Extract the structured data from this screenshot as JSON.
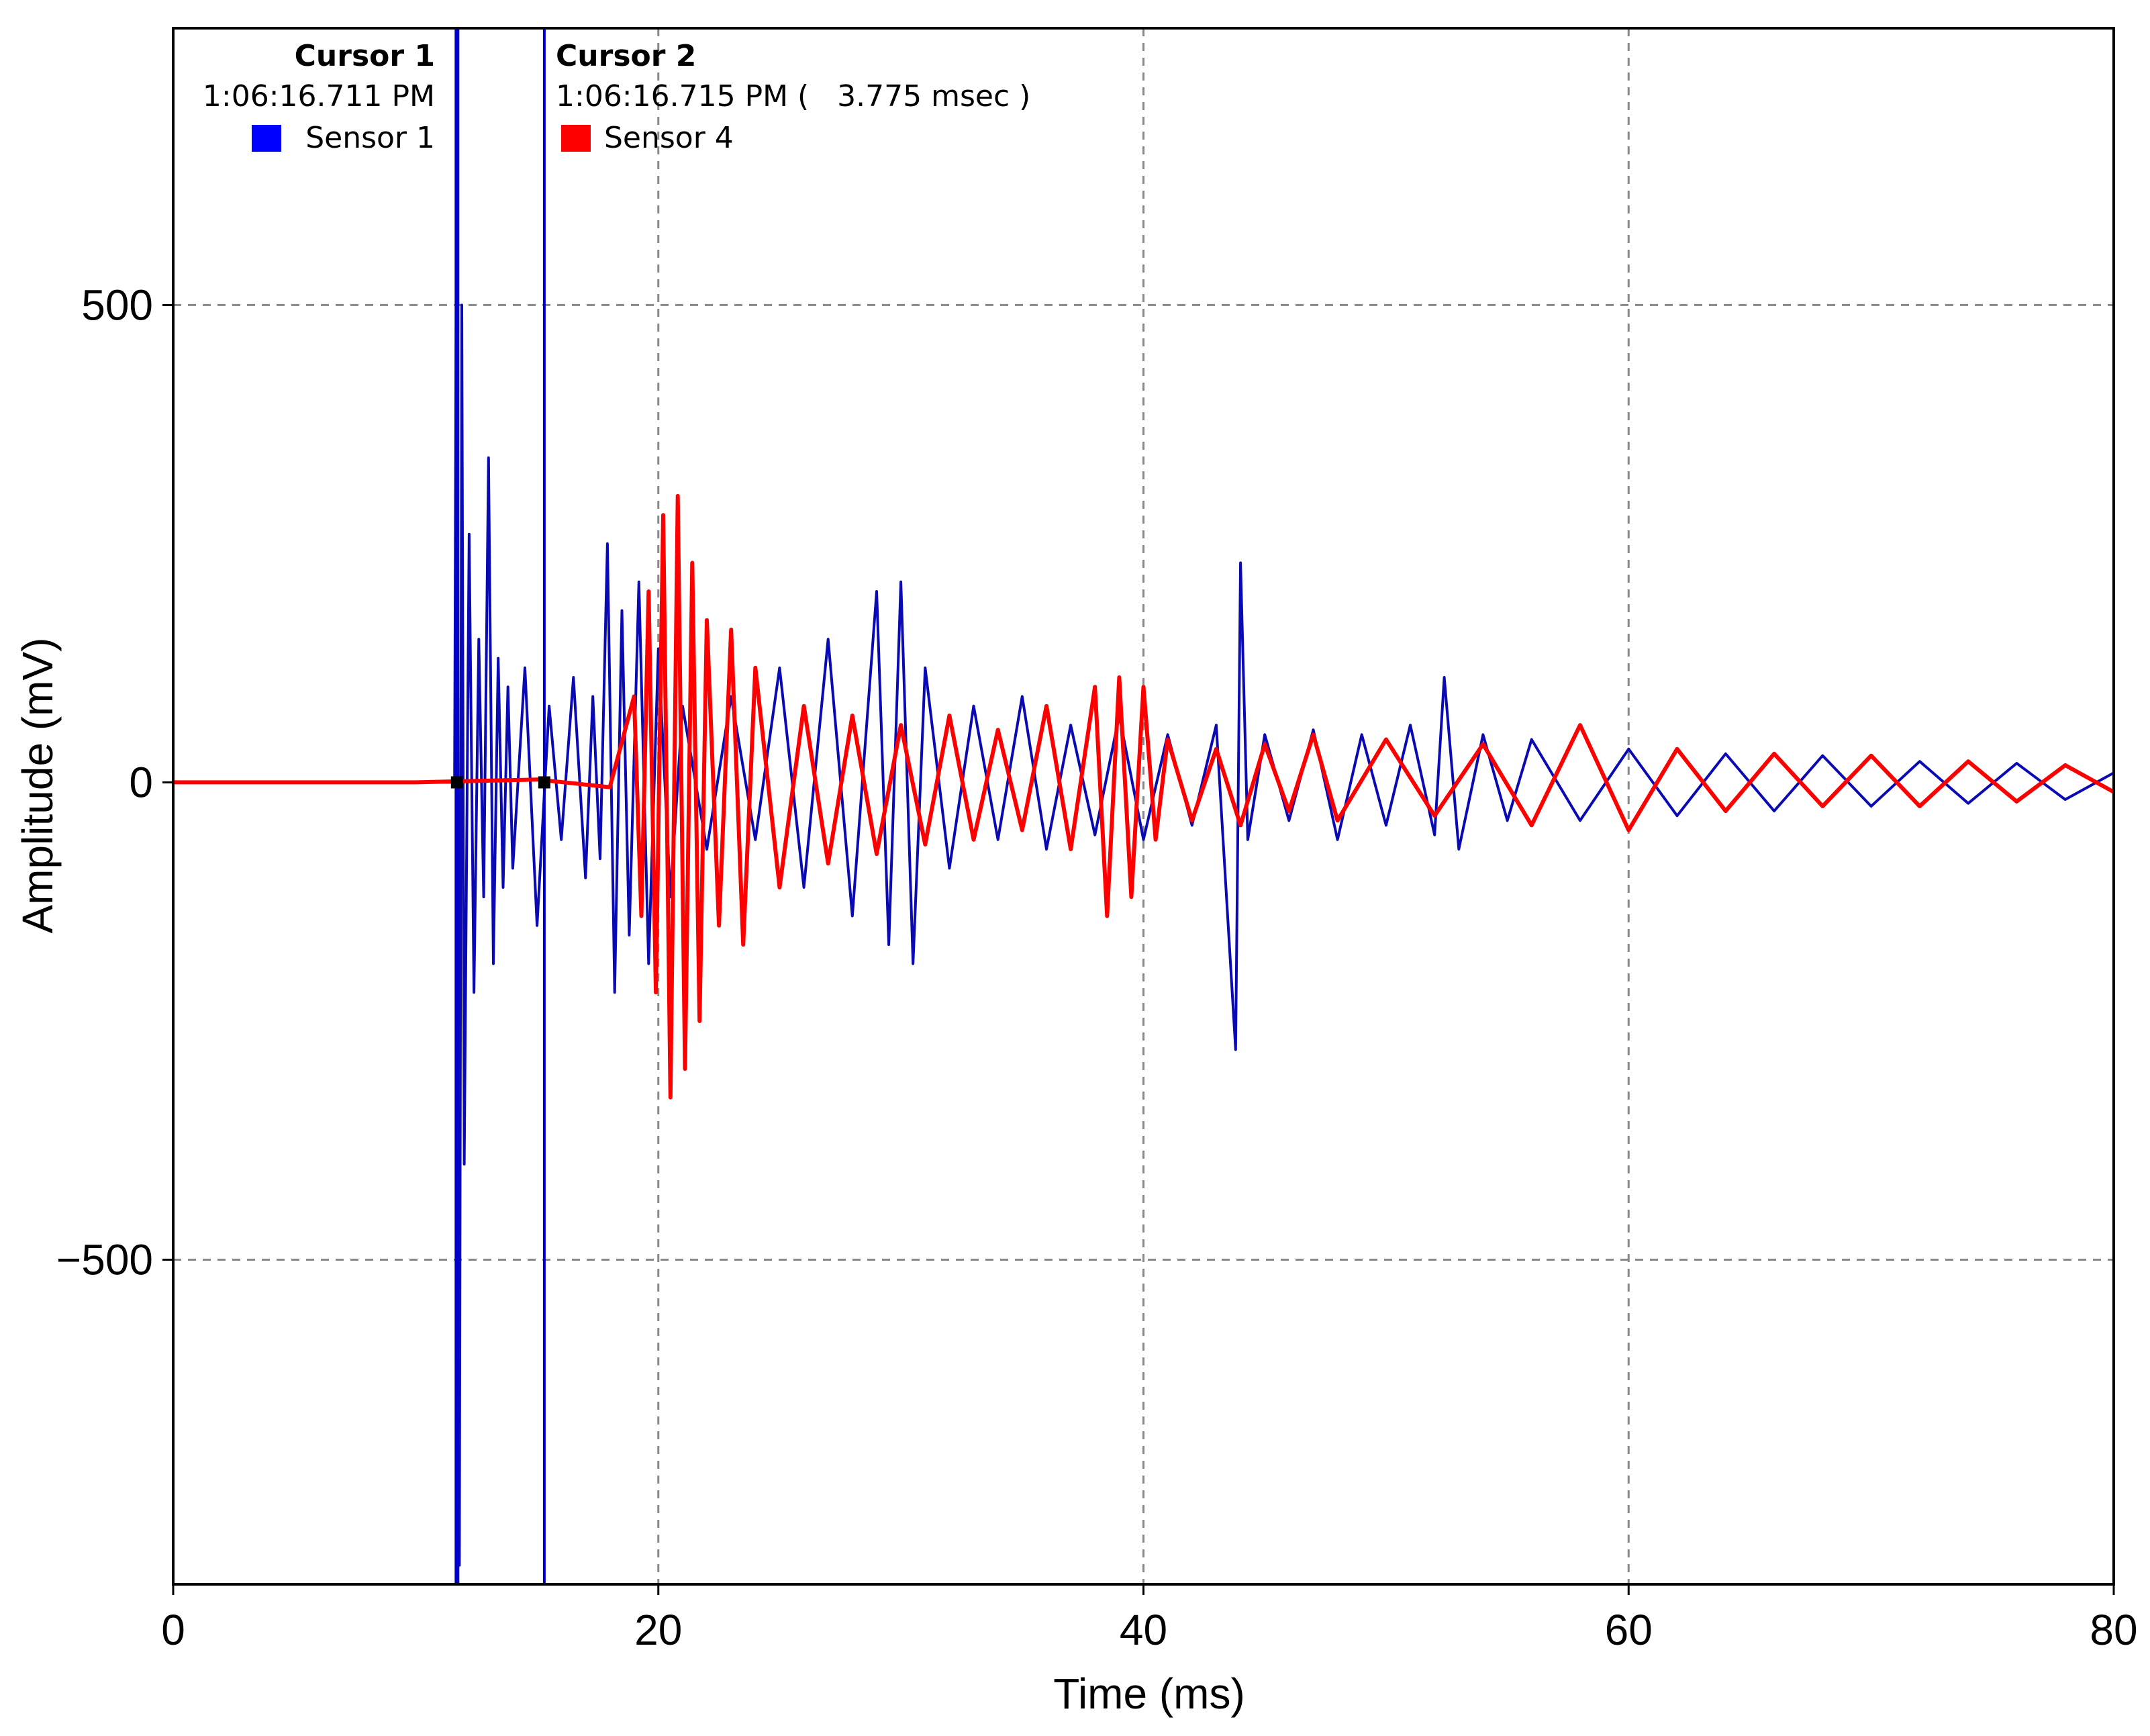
{
  "chart_data": {
    "type": "line",
    "xlabel": "Time (ms)",
    "ylabel": "Amplitude (mV)",
    "xlim": [
      0,
      80
    ],
    "ylim": [
      -840,
      790
    ],
    "x_ticks": [
      "0",
      "20",
      "40",
      "60",
      "80"
    ],
    "y_ticks": [
      "500",
      "0",
      "-500"
    ],
    "y_tick_values": [
      500,
      0,
      -500
    ],
    "x_tick_values": [
      0,
      20,
      40,
      60,
      80
    ],
    "grid": true,
    "colors": {
      "sensor1": "#0a0ab4",
      "sensor4": "#ff0000",
      "cursor": "#0000cc",
      "grid": "#888888"
    },
    "series": [
      {
        "name": "Sensor 1",
        "color": "#0a0ab4",
        "x": [
          0,
          11.6,
          11.7,
          11.8,
          11.9,
          12.0,
          12.2,
          12.4,
          12.6,
          12.8,
          13.0,
          13.2,
          13.4,
          13.6,
          13.8,
          14.0,
          14.5,
          15.0,
          15.5,
          16.0,
          16.5,
          17.0,
          17.3,
          17.6,
          17.9,
          18.2,
          18.5,
          18.8,
          19.2,
          19.6,
          20.0,
          20.5,
          21.0,
          22.0,
          23.0,
          24.0,
          25.0,
          26.0,
          27.0,
          28.0,
          29.0,
          29.5,
          30.0,
          30.5,
          31.0,
          32.0,
          33.0,
          34.0,
          35.0,
          36.0,
          37.0,
          38.0,
          39.0,
          40.0,
          41.0,
          42.0,
          43.0,
          43.8,
          44.0,
          44.3,
          45.0,
          46.0,
          47.0,
          48.0,
          49.0,
          50.0,
          51.0,
          52.0,
          52.4,
          53.0,
          54.0,
          55.0,
          56.0,
          58.0,
          60.0,
          62.0,
          64.0,
          66.0,
          68.0,
          70.0,
          72.0,
          74.0,
          76.0,
          78.0,
          80.0
        ],
        "y": [
          0,
          0,
          780,
          -820,
          500,
          -400,
          260,
          -220,
          150,
          -120,
          340,
          -190,
          130,
          -110,
          100,
          -90,
          120,
          -150,
          80,
          -60,
          110,
          -100,
          90,
          -80,
          250,
          -220,
          180,
          -160,
          210,
          -190,
          140,
          -120,
          80,
          -70,
          90,
          -60,
          120,
          -110,
          150,
          -140,
          200,
          -170,
          210,
          -190,
          120,
          -90,
          80,
          -60,
          90,
          -70,
          60,
          -55,
          70,
          -60,
          50,
          -45,
          60,
          -280,
          230,
          -60,
          50,
          -40,
          55,
          -60,
          50,
          -45,
          60,
          -55,
          110,
          -70,
          50,
          -40,
          45,
          -40,
          35,
          -35,
          30,
          -30,
          28,
          -25,
          22,
          -22,
          20,
          -18,
          10
        ]
      },
      {
        "name": "Sensor 4",
        "color": "#ff0000",
        "x": [
          0,
          10,
          15,
          18,
          19.0,
          19.3,
          19.6,
          19.9,
          20.2,
          20.5,
          20.8,
          21.1,
          21.4,
          21.7,
          22.0,
          22.5,
          23.0,
          23.5,
          24.0,
          25.0,
          26.0,
          27.0,
          28.0,
          29.0,
          30.0,
          31.0,
          32.0,
          33.0,
          34.0,
          35.0,
          36.0,
          37.0,
          38.0,
          38.5,
          39.0,
          39.5,
          40.0,
          40.5,
          41.0,
          42.0,
          43.0,
          44.0,
          45.0,
          46.0,
          47.0,
          48.0,
          50.0,
          52.0,
          54.0,
          56.0,
          58.0,
          60.0,
          62.0,
          64.0,
          66.0,
          68.0,
          70.0,
          72.0,
          74.0,
          76.0,
          78.0,
          80.0
        ],
        "y": [
          0,
          0,
          3,
          -5,
          90,
          -140,
          200,
          -220,
          280,
          -330,
          300,
          -300,
          230,
          -250,
          170,
          -150,
          160,
          -170,
          120,
          -110,
          80,
          -85,
          70,
          -75,
          60,
          -65,
          70,
          -60,
          55,
          -50,
          80,
          -70,
          100,
          -140,
          110,
          -120,
          100,
          -60,
          45,
          -40,
          35,
          -45,
          40,
          -30,
          50,
          -40,
          45,
          -35,
          40,
          -45,
          60,
          -50,
          35,
          -30,
          30,
          -25,
          28,
          -25,
          22,
          -20,
          18,
          -10
        ]
      }
    ]
  },
  "cursors": [
    {
      "title": "Cursor 1",
      "time": "1:06:16.711 PM",
      "sensor": "Sensor 1",
      "sensor_color": "#0000ff",
      "x": 11.7
    },
    {
      "title": "Cursor 2",
      "time": "1:06:16.715 PM (   3.775 msec )",
      "sensor": "Sensor 4",
      "sensor_color": "#ff0000",
      "x": 15.3
    }
  ]
}
